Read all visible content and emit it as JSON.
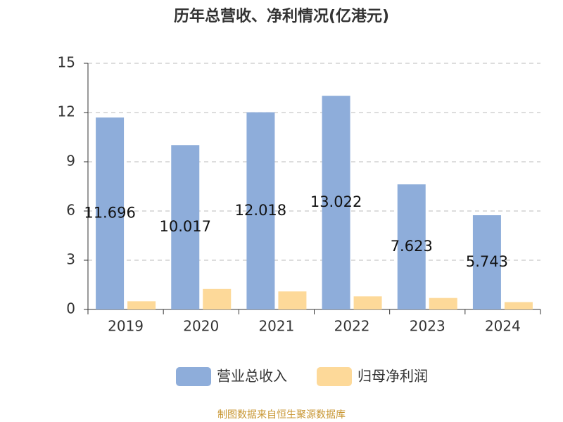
{
  "chart_data": {
    "type": "bar",
    "title": "历年总营收、净利情况(亿港元)",
    "categories": [
      "2019",
      "2020",
      "2021",
      "2022",
      "2023",
      "2024"
    ],
    "series": [
      {
        "name": "营业总收入",
        "color": "#8eadda",
        "values": [
          11.696,
          10.017,
          12.018,
          13.022,
          7.623,
          5.743
        ],
        "label_position": "center"
      },
      {
        "name": "归母净利润",
        "color": "#fdd999",
        "values": [
          0.5,
          1.25,
          1.1,
          0.8,
          0.7,
          0.45
        ]
      }
    ],
    "ylim": [
      0,
      15
    ],
    "yticks": [
      0,
      3,
      6,
      9,
      12,
      15
    ],
    "grid": true,
    "legend": "bottom",
    "source": "制图数据来自恒生聚源数据库"
  }
}
